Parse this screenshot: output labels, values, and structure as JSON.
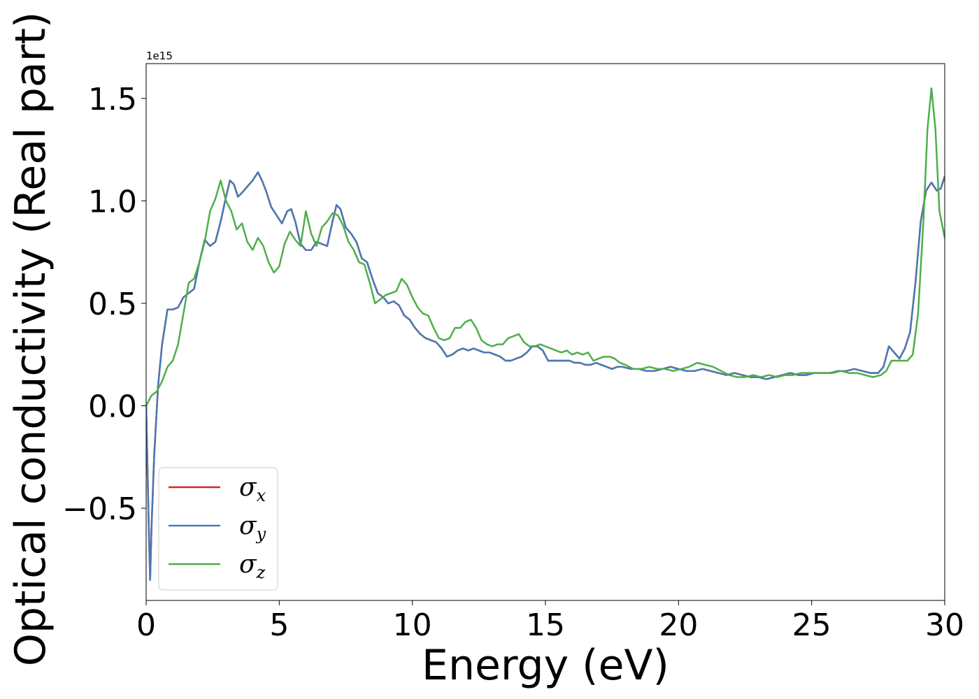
{
  "chart_data": {
    "type": "line",
    "xlabel": "Energy (eV)",
    "ylabel": "Optical conductivity (Real part)",
    "offset_text": "1e15",
    "xlim": [
      0,
      30
    ],
    "ylim": [
      -0.95,
      1.67
    ],
    "x_ticks": [
      0,
      5,
      10,
      15,
      20,
      25,
      30
    ],
    "x_tick_labels": [
      "0",
      "5",
      "10",
      "15",
      "20",
      "25",
      "30"
    ],
    "y_ticks": [
      -0.5,
      0.0,
      0.5,
      1.0,
      1.5
    ],
    "y_tick_labels": [
      "−0.5",
      "0.0",
      "0.5",
      "1.0",
      "1.5"
    ],
    "grid": false,
    "legend_position": "lower-left",
    "series": [
      {
        "name": "x",
        "color": "#d62728",
        "x": [
          0,
          0.1,
          0.15,
          0.2,
          0.3,
          0.45,
          0.6,
          0.8,
          1.0,
          1.2,
          1.4,
          1.6,
          1.8,
          2.0,
          2.2,
          2.4,
          2.6,
          2.8,
          3.0,
          3.15,
          3.3,
          3.45,
          3.6,
          3.8,
          4.0,
          4.2,
          4.35,
          4.5,
          4.7,
          4.9,
          5.1,
          5.3,
          5.45,
          5.6,
          5.8,
          6.0,
          6.2,
          6.4,
          6.6,
          6.8,
          7.0,
          7.15,
          7.3,
          7.5,
          7.7,
          7.9,
          8.1,
          8.3,
          8.5,
          8.7,
          8.9,
          9.1,
          9.3,
          9.5,
          9.7,
          9.9,
          10.1,
          10.3,
          10.5,
          10.7,
          10.9,
          11.1,
          11.3,
          11.5,
          11.7,
          11.9,
          12.1,
          12.3,
          12.5,
          12.7,
          12.9,
          13.1,
          13.3,
          13.5,
          13.7,
          13.9,
          14.1,
          14.3,
          14.5,
          14.7,
          14.9,
          15.1,
          15.3,
          15.5,
          15.7,
          15.9,
          16.1,
          16.3,
          16.5,
          16.7,
          16.9,
          17.1,
          17.3,
          17.5,
          17.7,
          17.9,
          18.2,
          18.5,
          18.8,
          19.1,
          19.4,
          19.7,
          20.0,
          20.3,
          20.6,
          20.9,
          21.2,
          21.5,
          21.8,
          22.1,
          22.4,
          22.7,
          23.0,
          23.3,
          23.6,
          23.9,
          24.2,
          24.5,
          24.8,
          25.1,
          25.4,
          25.7,
          26.0,
          26.3,
          26.6,
          26.9,
          27.2,
          27.5,
          27.7,
          27.9,
          28.1,
          28.3,
          28.5,
          28.7,
          28.9,
          29.1,
          29.3,
          29.5,
          29.7,
          29.85,
          30.0
        ],
        "values": [
          0.0,
          -0.6,
          -0.85,
          -0.6,
          -0.25,
          0.1,
          0.3,
          0.47,
          0.47,
          0.48,
          0.53,
          0.55,
          0.57,
          0.7,
          0.81,
          0.78,
          0.8,
          0.9,
          1.02,
          1.1,
          1.08,
          1.02,
          1.04,
          1.07,
          1.1,
          1.14,
          1.1,
          1.05,
          0.97,
          0.93,
          0.89,
          0.95,
          0.96,
          0.9,
          0.79,
          0.76,
          0.76,
          0.8,
          0.79,
          0.78,
          0.9,
          0.98,
          0.96,
          0.87,
          0.84,
          0.8,
          0.72,
          0.7,
          0.62,
          0.55,
          0.53,
          0.5,
          0.51,
          0.49,
          0.44,
          0.42,
          0.38,
          0.35,
          0.33,
          0.32,
          0.31,
          0.28,
          0.24,
          0.25,
          0.27,
          0.28,
          0.27,
          0.28,
          0.27,
          0.26,
          0.26,
          0.25,
          0.24,
          0.22,
          0.22,
          0.23,
          0.24,
          0.26,
          0.29,
          0.29,
          0.27,
          0.22,
          0.22,
          0.22,
          0.22,
          0.22,
          0.21,
          0.21,
          0.2,
          0.2,
          0.21,
          0.2,
          0.19,
          0.18,
          0.19,
          0.19,
          0.18,
          0.18,
          0.17,
          0.17,
          0.18,
          0.19,
          0.18,
          0.17,
          0.17,
          0.18,
          0.17,
          0.16,
          0.15,
          0.16,
          0.15,
          0.14,
          0.14,
          0.13,
          0.14,
          0.15,
          0.16,
          0.15,
          0.15,
          0.16,
          0.16,
          0.16,
          0.17,
          0.17,
          0.18,
          0.17,
          0.16,
          0.16,
          0.19,
          0.29,
          0.26,
          0.23,
          0.28,
          0.36,
          0.6,
          0.9,
          1.05,
          1.09,
          1.05,
          1.06,
          1.12
        ]
      },
      {
        "name": "y",
        "color": "#4a79b4",
        "x": [
          0,
          0.1,
          0.15,
          0.2,
          0.3,
          0.45,
          0.6,
          0.8,
          1.0,
          1.2,
          1.4,
          1.6,
          1.8,
          2.0,
          2.2,
          2.4,
          2.6,
          2.8,
          3.0,
          3.15,
          3.3,
          3.45,
          3.6,
          3.8,
          4.0,
          4.2,
          4.35,
          4.5,
          4.7,
          4.9,
          5.1,
          5.3,
          5.45,
          5.6,
          5.8,
          6.0,
          6.2,
          6.4,
          6.6,
          6.8,
          7.0,
          7.15,
          7.3,
          7.5,
          7.7,
          7.9,
          8.1,
          8.3,
          8.5,
          8.7,
          8.9,
          9.1,
          9.3,
          9.5,
          9.7,
          9.9,
          10.1,
          10.3,
          10.5,
          10.7,
          10.9,
          11.1,
          11.3,
          11.5,
          11.7,
          11.9,
          12.1,
          12.3,
          12.5,
          12.7,
          12.9,
          13.1,
          13.3,
          13.5,
          13.7,
          13.9,
          14.1,
          14.3,
          14.5,
          14.7,
          14.9,
          15.1,
          15.3,
          15.5,
          15.7,
          15.9,
          16.1,
          16.3,
          16.5,
          16.7,
          16.9,
          17.1,
          17.3,
          17.5,
          17.7,
          17.9,
          18.2,
          18.5,
          18.8,
          19.1,
          19.4,
          19.7,
          20.0,
          20.3,
          20.6,
          20.9,
          21.2,
          21.5,
          21.8,
          22.1,
          22.4,
          22.7,
          23.0,
          23.3,
          23.6,
          23.9,
          24.2,
          24.5,
          24.8,
          25.1,
          25.4,
          25.7,
          26.0,
          26.3,
          26.6,
          26.9,
          27.2,
          27.5,
          27.7,
          27.9,
          28.1,
          28.3,
          28.5,
          28.7,
          28.9,
          29.1,
          29.3,
          29.5,
          29.7,
          29.85,
          30.0
        ],
        "values": [
          0.0,
          -0.6,
          -0.85,
          -0.6,
          -0.25,
          0.1,
          0.3,
          0.47,
          0.47,
          0.48,
          0.53,
          0.55,
          0.57,
          0.7,
          0.81,
          0.78,
          0.8,
          0.9,
          1.02,
          1.1,
          1.08,
          1.02,
          1.04,
          1.07,
          1.1,
          1.14,
          1.1,
          1.05,
          0.97,
          0.93,
          0.89,
          0.95,
          0.96,
          0.9,
          0.79,
          0.76,
          0.76,
          0.8,
          0.79,
          0.78,
          0.9,
          0.98,
          0.96,
          0.87,
          0.84,
          0.8,
          0.72,
          0.7,
          0.62,
          0.55,
          0.53,
          0.5,
          0.51,
          0.49,
          0.44,
          0.42,
          0.38,
          0.35,
          0.33,
          0.32,
          0.31,
          0.28,
          0.24,
          0.25,
          0.27,
          0.28,
          0.27,
          0.28,
          0.27,
          0.26,
          0.26,
          0.25,
          0.24,
          0.22,
          0.22,
          0.23,
          0.24,
          0.26,
          0.29,
          0.29,
          0.27,
          0.22,
          0.22,
          0.22,
          0.22,
          0.22,
          0.21,
          0.21,
          0.2,
          0.2,
          0.21,
          0.2,
          0.19,
          0.18,
          0.19,
          0.19,
          0.18,
          0.18,
          0.17,
          0.17,
          0.18,
          0.19,
          0.18,
          0.17,
          0.17,
          0.18,
          0.17,
          0.16,
          0.15,
          0.16,
          0.15,
          0.14,
          0.14,
          0.13,
          0.14,
          0.15,
          0.16,
          0.15,
          0.15,
          0.16,
          0.16,
          0.16,
          0.17,
          0.17,
          0.18,
          0.17,
          0.16,
          0.16,
          0.19,
          0.29,
          0.26,
          0.23,
          0.28,
          0.36,
          0.6,
          0.9,
          1.05,
          1.09,
          1.05,
          1.06,
          1.12
        ]
      },
      {
        "name": "z",
        "color": "#4daf4a",
        "x": [
          0,
          0.2,
          0.4,
          0.6,
          0.8,
          1.0,
          1.2,
          1.4,
          1.6,
          1.8,
          2.0,
          2.2,
          2.4,
          2.6,
          2.8,
          3.0,
          3.2,
          3.4,
          3.6,
          3.8,
          4.0,
          4.2,
          4.4,
          4.6,
          4.8,
          5.0,
          5.2,
          5.4,
          5.6,
          5.8,
          6.0,
          6.2,
          6.4,
          6.6,
          6.8,
          7.0,
          7.2,
          7.4,
          7.6,
          7.8,
          8.0,
          8.2,
          8.4,
          8.6,
          8.8,
          9.0,
          9.2,
          9.4,
          9.6,
          9.8,
          10.0,
          10.2,
          10.4,
          10.6,
          10.8,
          11.0,
          11.2,
          11.4,
          11.6,
          11.8,
          12.0,
          12.2,
          12.4,
          12.6,
          12.8,
          13.0,
          13.2,
          13.4,
          13.6,
          13.8,
          14.0,
          14.2,
          14.4,
          14.6,
          14.8,
          15.0,
          15.2,
          15.4,
          15.6,
          15.8,
          16.0,
          16.2,
          16.4,
          16.6,
          16.8,
          17.0,
          17.2,
          17.4,
          17.6,
          17.8,
          18.0,
          18.3,
          18.6,
          18.9,
          19.2,
          19.5,
          19.8,
          20.1,
          20.4,
          20.7,
          21.0,
          21.3,
          21.6,
          21.9,
          22.2,
          22.5,
          22.8,
          23.1,
          23.4,
          23.7,
          24.0,
          24.3,
          24.6,
          24.9,
          25.2,
          25.5,
          25.8,
          26.1,
          26.4,
          26.7,
          27.0,
          27.3,
          27.6,
          27.8,
          28.0,
          28.2,
          28.4,
          28.6,
          28.8,
          29.0,
          29.2,
          29.35,
          29.5,
          29.65,
          29.8,
          30.0
        ],
        "values": [
          0.0,
          0.05,
          0.07,
          0.12,
          0.19,
          0.22,
          0.3,
          0.45,
          0.6,
          0.62,
          0.7,
          0.8,
          0.95,
          1.01,
          1.1,
          1.0,
          0.95,
          0.86,
          0.89,
          0.8,
          0.76,
          0.82,
          0.78,
          0.7,
          0.65,
          0.68,
          0.79,
          0.85,
          0.81,
          0.78,
          0.95,
          0.84,
          0.78,
          0.87,
          0.9,
          0.94,
          0.93,
          0.88,
          0.8,
          0.76,
          0.7,
          0.69,
          0.6,
          0.5,
          0.52,
          0.54,
          0.55,
          0.56,
          0.62,
          0.59,
          0.53,
          0.48,
          0.45,
          0.44,
          0.38,
          0.33,
          0.32,
          0.33,
          0.38,
          0.38,
          0.41,
          0.42,
          0.38,
          0.32,
          0.3,
          0.29,
          0.3,
          0.3,
          0.33,
          0.34,
          0.35,
          0.31,
          0.29,
          0.29,
          0.3,
          0.29,
          0.28,
          0.27,
          0.26,
          0.27,
          0.25,
          0.26,
          0.25,
          0.26,
          0.22,
          0.23,
          0.24,
          0.24,
          0.23,
          0.21,
          0.2,
          0.18,
          0.18,
          0.19,
          0.18,
          0.18,
          0.17,
          0.18,
          0.19,
          0.21,
          0.2,
          0.19,
          0.17,
          0.15,
          0.14,
          0.14,
          0.15,
          0.14,
          0.15,
          0.14,
          0.15,
          0.15,
          0.16,
          0.16,
          0.16,
          0.16,
          0.16,
          0.17,
          0.16,
          0.16,
          0.15,
          0.14,
          0.15,
          0.17,
          0.22,
          0.22,
          0.22,
          0.22,
          0.25,
          0.45,
          0.9,
          1.35,
          1.55,
          1.35,
          0.95,
          0.82
        ]
      }
    ]
  }
}
